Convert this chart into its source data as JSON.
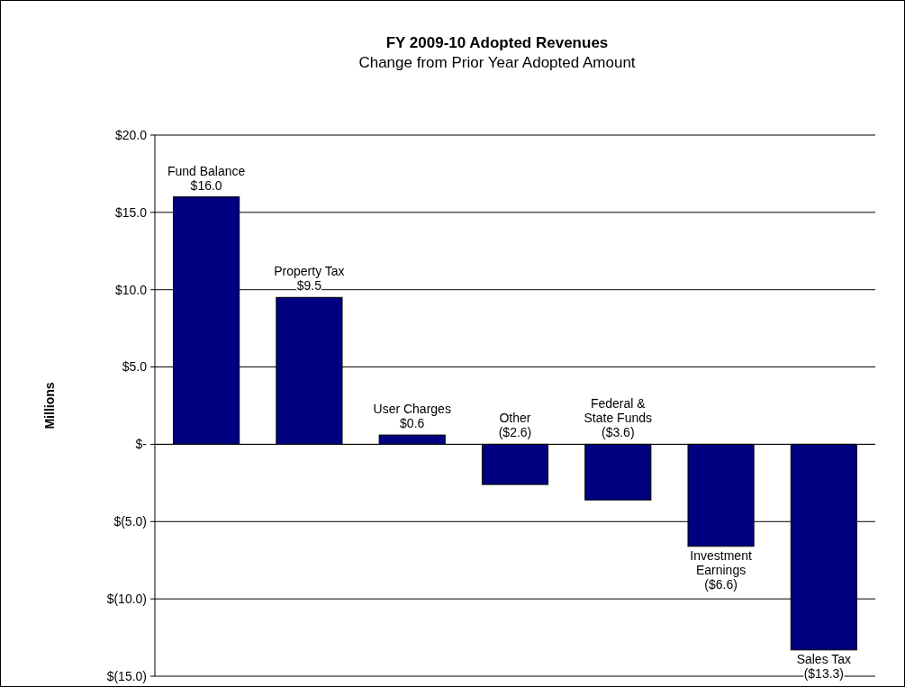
{
  "chart_data": {
    "type": "bar",
    "title": "FY 2009-10 Adopted Revenues",
    "subtitle": "Change from Prior Year Adopted Amount",
    "ylabel": "Millions",
    "categories": [
      "Fund Balance",
      "Property Tax",
      "User Charges",
      "Other",
      "Federal & State Funds",
      "Investment Earnings",
      "Sales Tax"
    ],
    "values": [
      16.0,
      9.5,
      0.6,
      -2.6,
      -3.6,
      -6.6,
      -13.3
    ],
    "value_labels": [
      "$16.0",
      "$9.5",
      "$0.6",
      "($2.6)",
      "($3.6)",
      "($6.6)",
      "($13.3)"
    ],
    "color": "#000080",
    "ylim": [
      -15,
      20
    ],
    "yticks": [
      {
        "value": 20,
        "label": "$20.0"
      },
      {
        "value": 15,
        "label": "$15.0"
      },
      {
        "value": 10,
        "label": "$10.0"
      },
      {
        "value": 5,
        "label": "$5.0"
      },
      {
        "value": 0,
        "label": "$-"
      },
      {
        "value": -5,
        "label": "$(5.0)"
      },
      {
        "value": -10,
        "label": "$(10.0)"
      },
      {
        "value": -15,
        "label": "$(15.0)"
      }
    ],
    "grid": "y",
    "tick_labels": "y"
  }
}
